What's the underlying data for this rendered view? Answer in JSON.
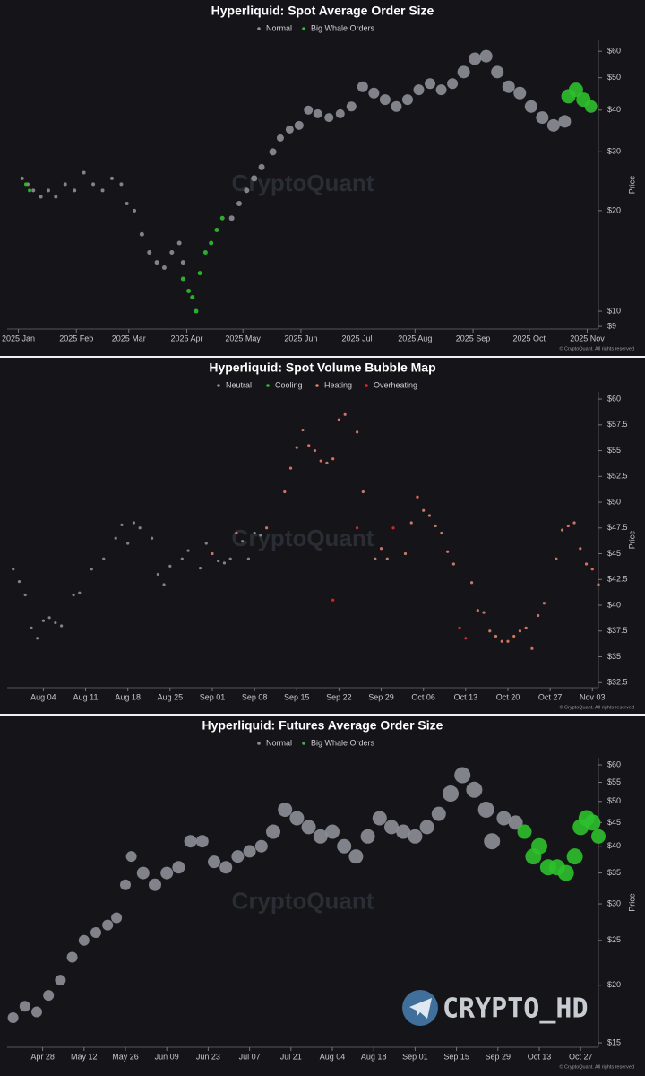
{
  "chart_data": [
    {
      "type": "scatter",
      "title": "Hyperliquid: Spot Average Order Size",
      "y_label": "Price",
      "watermark": "CryptoQuant",
      "copyright": "© CryptoQuant. All rights reserved",
      "log_y": true,
      "xlim": [
        -6,
        310
      ],
      "ylim": [
        8.84,
        64.7
      ],
      "xticks": [
        {
          "value": 0,
          "label": "2025 Jan"
        },
        {
          "value": 31,
          "label": "2025 Feb"
        },
        {
          "value": 59,
          "label": "2025 Mar"
        },
        {
          "value": 90,
          "label": "2025 Apr"
        },
        {
          "value": 120,
          "label": "2025 May"
        },
        {
          "value": 151,
          "label": "2025 Jun"
        },
        {
          "value": 181,
          "label": "2025 Jul"
        },
        {
          "value": 212,
          "label": "2025 Aug"
        },
        {
          "value": 243,
          "label": "2025 Sep"
        },
        {
          "value": 273,
          "label": "2025 Oct"
        },
        {
          "value": 304,
          "label": "2025 Nov"
        }
      ],
      "yticks": [
        {
          "value": 9,
          "label": "$9"
        },
        {
          "value": 10,
          "label": "$10"
        },
        {
          "value": 20,
          "label": "$20"
        },
        {
          "value": 30,
          "label": "$30"
        },
        {
          "value": 40,
          "label": "$40"
        },
        {
          "value": 50,
          "label": "$50"
        },
        {
          "value": 60,
          "label": "$60"
        }
      ],
      "series": [
        {
          "name": "Normal",
          "color": "#8e8e98",
          "x": [
            2,
            5,
            8,
            12,
            16,
            20,
            25,
            30,
            35,
            40,
            45,
            50,
            55,
            58,
            62,
            66,
            70,
            74,
            78,
            82,
            86,
            88,
            114,
            118,
            122,
            126,
            130,
            136,
            140,
            145,
            150,
            155,
            160,
            166,
            172,
            178,
            184,
            190,
            196,
            202,
            208,
            214,
            220,
            226,
            232,
            238,
            244,
            250,
            256,
            262,
            268,
            274,
            280,
            286,
            292
          ],
          "values": [
            25,
            24,
            23,
            22,
            23,
            22,
            24,
            23,
            26,
            24,
            23,
            25,
            24,
            21,
            20,
            17,
            15,
            14,
            13.5,
            15,
            16,
            14,
            19,
            21,
            23,
            25,
            27,
            30,
            33,
            35,
            36,
            40,
            39,
            38,
            39,
            41,
            47,
            45,
            43,
            41,
            43,
            46,
            48,
            46,
            48,
            52,
            57,
            58,
            52,
            47,
            45,
            41,
            38,
            36,
            37
          ],
          "sizes": [
            2,
            2,
            2,
            2,
            2,
            2,
            2,
            2,
            2,
            2,
            2,
            2,
            2,
            2,
            2,
            2.5,
            2.5,
            2.5,
            2.5,
            2.5,
            2.5,
            2.5,
            3,
            3,
            3,
            3.5,
            3.5,
            4,
            4,
            4.5,
            5,
            5,
            5,
            5,
            5,
            5.5,
            6,
            6,
            6,
            6,
            6,
            6,
            6,
            6,
            6,
            7,
            7,
            7,
            7,
            7,
            7,
            7,
            7,
            7,
            7
          ]
        },
        {
          "name": "Big Whale Orders",
          "color": "#2ec02e",
          "x": [
            4,
            6,
            88,
            91,
            93,
            95,
            97,
            100,
            103,
            106,
            109,
            294,
            298,
            302,
            306
          ],
          "values": [
            24,
            23,
            12.5,
            11.5,
            11,
            10,
            13,
            15,
            16,
            17.5,
            19,
            44,
            46,
            43,
            41
          ],
          "sizes": [
            2,
            2,
            2.5,
            2.5,
            2.5,
            2.5,
            2.5,
            2.5,
            2.5,
            2.5,
            2.5,
            8,
            8,
            8,
            7
          ]
        }
      ]
    },
    {
      "type": "scatter",
      "title": "Hyperliquid: Spot Volume Bubble Map",
      "y_label": "Price",
      "watermark": "CryptoQuant",
      "copyright": "© CryptoQuant. All rights reserved",
      "log_y": false,
      "marker_size": 1.6,
      "xlim": [
        -6,
        92
      ],
      "ylim": [
        32,
        60.7
      ],
      "xticks": [
        {
          "value": 0,
          "label": "Aug 04"
        },
        {
          "value": 7,
          "label": "Aug 11"
        },
        {
          "value": 14,
          "label": "Aug 18"
        },
        {
          "value": 21,
          "label": "Aug 25"
        },
        {
          "value": 28,
          "label": "Sep 01"
        },
        {
          "value": 35,
          "label": "Sep 08"
        },
        {
          "value": 42,
          "label": "Sep 15"
        },
        {
          "value": 49,
          "label": "Sep 22"
        },
        {
          "value": 56,
          "label": "Sep 29"
        },
        {
          "value": 63,
          "label": "Oct 06"
        },
        {
          "value": 70,
          "label": "Oct 13"
        },
        {
          "value": 77,
          "label": "Oct 20"
        },
        {
          "value": 84,
          "label": "Oct 27"
        },
        {
          "value": 91,
          "label": "Nov 03"
        }
      ],
      "yticks": [
        {
          "value": 32.5,
          "label": "$32.5"
        },
        {
          "value": 35,
          "label": "$35"
        },
        {
          "value": 37.5,
          "label": "$37.5"
        },
        {
          "value": 40,
          "label": "$40"
        },
        {
          "value": 42.5,
          "label": "$42.5"
        },
        {
          "value": 45,
          "label": "$45"
        },
        {
          "value": 47.5,
          "label": "$47.5"
        },
        {
          "value": 50,
          "label": "$50"
        },
        {
          "value": 52.5,
          "label": "$52.5"
        },
        {
          "value": 55,
          "label": "$55"
        },
        {
          "value": 57.5,
          "label": "$57.5"
        },
        {
          "value": 60,
          "label": "$60"
        }
      ],
      "series": [
        {
          "name": "Neutral",
          "color": "#8e8e98",
          "x": [
            -5,
            -4,
            -3,
            -2,
            -1,
            0,
            1,
            2,
            3,
            5,
            6,
            8,
            10,
            12,
            13,
            14,
            15,
            16,
            18,
            19,
            20,
            21,
            23,
            24,
            26,
            27,
            29,
            30,
            31,
            33,
            34,
            35,
            36
          ],
          "values": [
            43.5,
            42.3,
            41,
            37.8,
            36.8,
            38.5,
            38.8,
            38.3,
            38,
            41,
            41.2,
            43.5,
            44.5,
            46.5,
            47.8,
            46,
            48,
            47.5,
            46.5,
            43,
            42,
            43.8,
            44.5,
            45.3,
            43.6,
            46,
            44.3,
            44.1,
            44.5,
            46.2,
            44.5,
            47,
            46.8
          ]
        },
        {
          "name": "Cooling",
          "color": "#2ec02e",
          "x": [],
          "values": []
        },
        {
          "name": "Heating",
          "color": "#e0806c",
          "x": [
            28,
            32,
            37,
            40,
            41,
            42,
            43,
            44,
            45,
            46,
            47,
            48,
            49,
            50,
            52,
            53,
            55,
            56,
            57,
            60,
            61,
            62,
            63,
            64,
            65,
            66,
            67,
            68,
            71,
            72,
            73,
            74,
            75,
            76,
            77,
            78,
            79,
            80,
            81,
            82,
            83,
            85,
            86,
            87,
            88,
            89,
            90,
            91,
            92
          ],
          "values": [
            45,
            47,
            47.5,
            51,
            53.3,
            55.3,
            57,
            55.5,
            55,
            54,
            53.8,
            54.2,
            58,
            58.5,
            56.8,
            51,
            44.5,
            45.5,
            44.5,
            45,
            48,
            50.5,
            49.2,
            48.7,
            47.7,
            47,
            45.2,
            44,
            42.2,
            39.5,
            39.3,
            37.5,
            37,
            36.5,
            36.5,
            37,
            37.5,
            37.8,
            35.8,
            39,
            40.2,
            44.5,
            47.3,
            47.7,
            48,
            45.5,
            44,
            43.5,
            42
          ]
        },
        {
          "name": "Overheating",
          "color": "#d83030",
          "x": [
            48,
            52,
            58,
            69,
            70
          ],
          "values": [
            40.5,
            47.5,
            47.5,
            37.8,
            36.8
          ]
        }
      ]
    },
    {
      "type": "scatter",
      "title": "Hyperliquid: Futures Average Order Size",
      "y_label": "Price",
      "watermark": "CryptoQuant",
      "copyright": "© CryptoQuant. All rights reserved",
      "log_y": true,
      "xlim": [
        -12,
        188
      ],
      "ylim": [
        14.67,
        62.2
      ],
      "xticks": [
        {
          "value": 0,
          "label": "Apr 28"
        },
        {
          "value": 14,
          "label": "May 12"
        },
        {
          "value": 28,
          "label": "May 26"
        },
        {
          "value": 42,
          "label": "Jun 09"
        },
        {
          "value": 56,
          "label": "Jun 23"
        },
        {
          "value": 70,
          "label": "Jul 07"
        },
        {
          "value": 84,
          "label": "Jul 21"
        },
        {
          "value": 98,
          "label": "Aug 04"
        },
        {
          "value": 112,
          "label": "Aug 18"
        },
        {
          "value": 126,
          "label": "Sep 01"
        },
        {
          "value": 140,
          "label": "Sep 15"
        },
        {
          "value": 154,
          "label": "Sep 29"
        },
        {
          "value": 168,
          "label": "Oct 13"
        },
        {
          "value": 182,
          "label": "Oct 27"
        }
      ],
      "yticks": [
        {
          "value": 15,
          "label": "$15"
        },
        {
          "value": 20,
          "label": "$20"
        },
        {
          "value": 25,
          "label": "$25"
        },
        {
          "value": 30,
          "label": "$30"
        },
        {
          "value": 35,
          "label": "$35"
        },
        {
          "value": 40,
          "label": "$40"
        },
        {
          "value": 45,
          "label": "$45"
        },
        {
          "value": 50,
          "label": "$50"
        },
        {
          "value": 55,
          "label": "$55"
        },
        {
          "value": 60,
          "label": "$60"
        }
      ],
      "series": [
        {
          "name": "Normal",
          "color": "#8e8e98",
          "x": [
            -10,
            -6,
            -2,
            2,
            6,
            10,
            14,
            18,
            22,
            25,
            28,
            30,
            34,
            38,
            42,
            46,
            50,
            54,
            58,
            62,
            66,
            70,
            74,
            78,
            82,
            86,
            90,
            94,
            98,
            102,
            106,
            110,
            114,
            118,
            122,
            126,
            130,
            134,
            138,
            142,
            146,
            150,
            152,
            156,
            160
          ],
          "values": [
            17,
            18,
            17.5,
            19,
            20.5,
            23,
            25,
            26,
            27,
            28,
            33,
            38,
            35,
            33,
            35,
            36,
            41,
            41,
            37,
            36,
            38,
            39,
            40,
            43,
            48,
            46,
            44,
            42,
            43,
            40,
            38,
            42,
            46,
            44,
            43,
            42,
            44,
            47,
            52,
            57,
            53,
            48,
            41,
            46,
            45
          ],
          "sizes": [
            6,
            6,
            6,
            6,
            6,
            6,
            6,
            6,
            6,
            6,
            6,
            6,
            7,
            7,
            7,
            7,
            7,
            7,
            7,
            7,
            7,
            7,
            7,
            8,
            8,
            8,
            8,
            8,
            8,
            8,
            8,
            8,
            8,
            8,
            8,
            8,
            8,
            8,
            9,
            9,
            9,
            9,
            9,
            8,
            8
          ]
        },
        {
          "name": "Big Whale Orders",
          "color": "#2ec02e",
          "x": [
            163,
            166,
            168,
            171,
            174,
            177,
            180,
            182,
            184,
            186,
            188
          ],
          "values": [
            43,
            38,
            40,
            36,
            36,
            35,
            38,
            44,
            46,
            45,
            42
          ],
          "sizes": [
            8,
            9,
            9,
            9,
            9,
            9,
            9,
            9,
            9,
            9,
            8
          ]
        }
      ]
    }
  ],
  "overlay": {
    "text": "CRYPTO_HD"
  }
}
